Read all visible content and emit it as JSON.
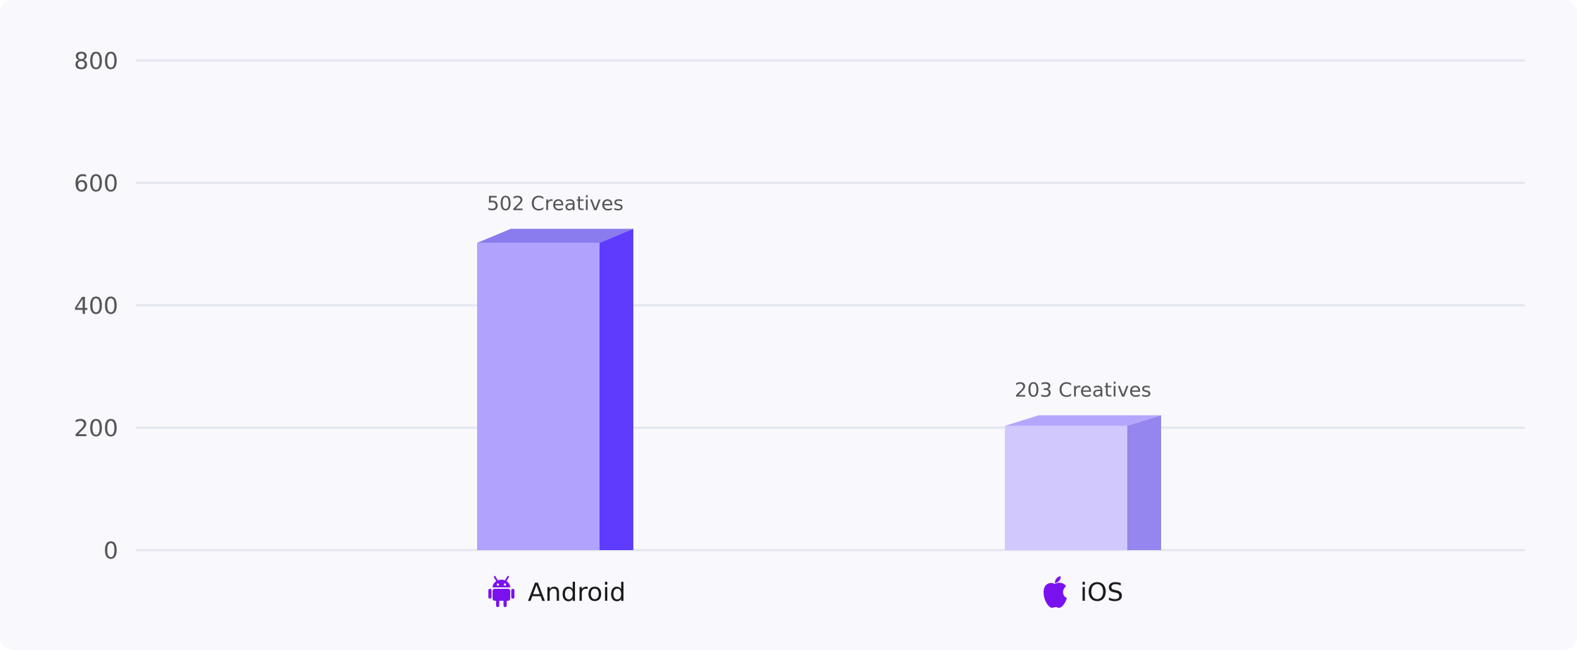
{
  "chart_data": {
    "type": "bar",
    "categories": [
      "Android",
      "iOS"
    ],
    "category_icons": [
      "android-icon",
      "apple-icon"
    ],
    "values": [
      502,
      203
    ],
    "data_labels": [
      "502 Creatives",
      "203 Creatives"
    ],
    "yticks": [
      "0",
      "200",
      "400",
      "600",
      "800"
    ],
    "ylim": [
      0,
      800
    ],
    "grid": true,
    "title": "",
    "xlabel": "",
    "ylabel": ""
  },
  "colors": {
    "background": "#f9f8fd",
    "grid": "#e3e6ef",
    "icon": "#7a12f0",
    "android_front": "#b0a2fd",
    "android_side": "#5f3bfe",
    "android_top": "#8a7bee",
    "ios_front": "#d1c8fe",
    "ios_side": "#9485ef",
    "ios_top": "#b3a6fb"
  }
}
